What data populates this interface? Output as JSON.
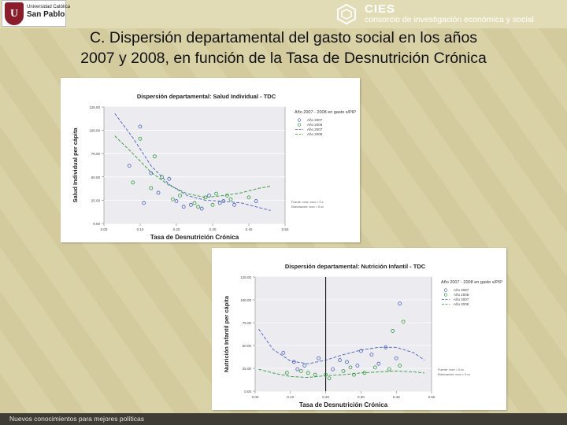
{
  "header": {
    "left_logo": {
      "line1": "Universidad Católica",
      "line2": "San Pablo",
      "crest_letter": "U"
    },
    "right_logo": {
      "name": "CIES",
      "subtitle": "consorcio de investigación económica y social"
    }
  },
  "slide": {
    "title_line1": "C. Dispersión departamental del gasto social en los años",
    "title_line2": "2007 y 2008, en función de la Tasa de Desnutrición Crónica"
  },
  "footer": {
    "text": "Nuevos conocimientos para mejores políticas"
  },
  "colors": {
    "year2007": "#4a5fc0",
    "year2008": "#2f9a3c",
    "background": "#d9d2a6",
    "footer": "#3f3c35"
  },
  "chart_data": [
    {
      "type": "scatter",
      "title": "Dispersión departamental: Salud Individual - TDC",
      "xlabel": "Tasa de Desnutrición Crónica",
      "ylabel": "Salud Individual per cápita",
      "xlim": [
        0.0,
        0.5
      ],
      "ylim": [
        0,
        125
      ],
      "xticks": [
        "0.00",
        "0.10",
        "0.20",
        "0.30",
        "0.40",
        "0.50"
      ],
      "yticks": [
        "0.00",
        "25.00",
        "50.00",
        "75.00",
        "100.00",
        "125.00"
      ],
      "legend_title": "Año 2007 - 2008 en gasto s/PIP",
      "legend": [
        "Año 2007",
        "Año 2008",
        "Año 2007",
        "Año 2008"
      ],
      "note": [
        "Fuente: xxxx: xxxx = 0.x",
        "Elaboración: xxxx = 0.xx"
      ],
      "divider_x": null,
      "series": [
        {
          "name": "Año 2007",
          "kind": "points",
          "points": [
            [
              0.07,
              62
            ],
            [
              0.1,
              104
            ],
            [
              0.13,
              54
            ],
            [
              0.15,
              33
            ],
            [
              0.18,
              48
            ],
            [
              0.2,
              24
            ],
            [
              0.24,
              20
            ],
            [
              0.29,
              30
            ],
            [
              0.32,
              22
            ],
            [
              0.36,
              20
            ],
            [
              0.42,
              24
            ],
            [
              0.11,
              22
            ],
            [
              0.22,
              18
            ],
            [
              0.27,
              16
            ],
            [
              0.33,
              24
            ]
          ]
        },
        {
          "name": "Año 2008",
          "kind": "points",
          "points": [
            [
              0.1,
              91
            ],
            [
              0.14,
              72
            ],
            [
              0.16,
              50
            ],
            [
              0.13,
              38
            ],
            [
              0.19,
              26
            ],
            [
              0.25,
              22
            ],
            [
              0.28,
              28
            ],
            [
              0.31,
              32
            ],
            [
              0.35,
              26
            ],
            [
              0.4,
              28
            ],
            [
              0.08,
              44
            ],
            [
              0.21,
              30
            ],
            [
              0.3,
              20
            ],
            [
              0.26,
              18
            ],
            [
              0.34,
              30
            ]
          ]
        },
        {
          "name": "Año 2007",
          "kind": "curve",
          "dashed": true,
          "points": [
            [
              0.03,
              118
            ],
            [
              0.08,
              92
            ],
            [
              0.13,
              62
            ],
            [
              0.18,
              42
            ],
            [
              0.23,
              30
            ],
            [
              0.28,
              25
            ],
            [
              0.33,
              24
            ],
            [
              0.38,
              22
            ],
            [
              0.43,
              17
            ],
            [
              0.46,
              14
            ]
          ]
        },
        {
          "name": "Año 2008",
          "kind": "curve",
          "dashed": true,
          "points": [
            [
              0.03,
              94
            ],
            [
              0.08,
              75
            ],
            [
              0.13,
              55
            ],
            [
              0.18,
              41
            ],
            [
              0.23,
              32
            ],
            [
              0.28,
              28
            ],
            [
              0.33,
              30
            ],
            [
              0.38,
              33
            ],
            [
              0.43,
              38
            ],
            [
              0.46,
              40
            ]
          ]
        }
      ]
    },
    {
      "type": "scatter",
      "title": "Dispersión departamental: Nutrición Infantil - TDC",
      "xlabel": "Tasa de Desnutrición Crónica",
      "ylabel": "Nutrición Infantil per cápita",
      "xlim": [
        0.0,
        0.5
      ],
      "ylim": [
        0,
        125
      ],
      "xticks": [
        "0.00",
        "0.10",
        "0.20",
        "0.30",
        "0.40",
        "0.50"
      ],
      "yticks": [
        "0.00",
        "25.00",
        "50.00",
        "75.00",
        "100.00",
        "125.00"
      ],
      "legend_title": "Año 2007 - 2008 en gasto s/PIP",
      "legend": [
        "Año 2007",
        "Año 2008",
        "Año 2007",
        "Año 2008"
      ],
      "note": [
        "Fuente: xxxx = 0.xx",
        "Elaboración: xxxx = 0.xx"
      ],
      "divider_x": 0.2,
      "series": [
        {
          "name": "Año 2007",
          "kind": "points",
          "points": [
            [
              0.08,
              42
            ],
            [
              0.11,
              32
            ],
            [
              0.14,
              28
            ],
            [
              0.18,
              36
            ],
            [
              0.22,
              24
            ],
            [
              0.26,
              32
            ],
            [
              0.29,
              28
            ],
            [
              0.33,
              40
            ],
            [
              0.37,
              48
            ],
            [
              0.4,
              36
            ],
            [
              0.41,
              96
            ],
            [
              0.35,
              30
            ],
            [
              0.12,
              24
            ],
            [
              0.24,
              34
            ],
            [
              0.3,
              44
            ]
          ]
        },
        {
          "name": "Año 2008",
          "kind": "points",
          "points": [
            [
              0.09,
              20
            ],
            [
              0.13,
              22
            ],
            [
              0.17,
              18
            ],
            [
              0.21,
              14
            ],
            [
              0.25,
              22
            ],
            [
              0.28,
              18
            ],
            [
              0.31,
              20
            ],
            [
              0.34,
              26
            ],
            [
              0.38,
              24
            ],
            [
              0.41,
              28
            ],
            [
              0.42,
              76
            ],
            [
              0.39,
              66
            ],
            [
              0.15,
              20
            ],
            [
              0.2,
              18
            ],
            [
              0.27,
              26
            ]
          ]
        },
        {
          "name": "Año 2007",
          "kind": "curve",
          "dashed": true,
          "points": [
            [
              0.01,
              68
            ],
            [
              0.05,
              46
            ],
            [
              0.1,
              33
            ],
            [
              0.15,
              30
            ],
            [
              0.2,
              34
            ],
            [
              0.25,
              40
            ],
            [
              0.3,
              45
            ],
            [
              0.35,
              48
            ],
            [
              0.4,
              48
            ],
            [
              0.45,
              42
            ],
            [
              0.48,
              34
            ]
          ]
        },
        {
          "name": "Año 2008",
          "kind": "curve",
          "dashed": true,
          "points": [
            [
              0.01,
              24
            ],
            [
              0.05,
              20
            ],
            [
              0.1,
              16
            ],
            [
              0.15,
              15
            ],
            [
              0.2,
              17
            ],
            [
              0.25,
              18
            ],
            [
              0.3,
              20
            ],
            [
              0.35,
              21
            ],
            [
              0.4,
              22
            ],
            [
              0.45,
              21
            ],
            [
              0.48,
              20
            ]
          ]
        }
      ]
    }
  ]
}
